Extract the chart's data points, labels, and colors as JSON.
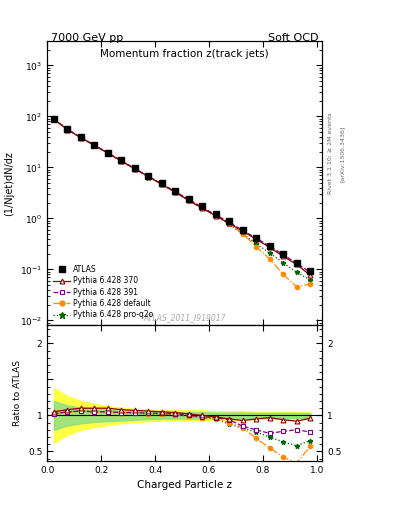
{
  "title_top_left": "7000 GeV pp",
  "title_top_right": "Soft QCD",
  "plot_title": "Momentum fraction z(track jets)",
  "ylabel_main": "(1/Njet)dN/dz",
  "ylabel_ratio": "Ratio to ATLAS",
  "xlabel": "Charged Particle z",
  "watermark": "ATLAS_2011_I919017",
  "rivet_label": "Rivet 3.1.10; ≥ 2M events",
  "arxiv_label": "[arXiv:1306.3436]",
  "ylim_main": [
    0.008,
    3000
  ],
  "ylim_ratio": [
    0.37,
    2.25
  ],
  "xlim": [
    0.0,
    1.02
  ],
  "z_values": [
    0.025,
    0.075,
    0.125,
    0.175,
    0.225,
    0.275,
    0.325,
    0.375,
    0.425,
    0.475,
    0.525,
    0.575,
    0.625,
    0.675,
    0.725,
    0.775,
    0.825,
    0.875,
    0.925,
    0.975
  ],
  "atlas_y": [
    90,
    57,
    39,
    27.5,
    19.5,
    13.8,
    9.7,
    6.9,
    4.9,
    3.5,
    2.45,
    1.72,
    1.22,
    0.87,
    0.6,
    0.42,
    0.29,
    0.2,
    0.135,
    0.092
  ],
  "atlas_yerr": [
    5,
    3,
    2,
    1.5,
    1.0,
    0.7,
    0.5,
    0.35,
    0.25,
    0.18,
    0.12,
    0.09,
    0.07,
    0.05,
    0.04,
    0.03,
    0.02,
    0.015,
    0.012,
    0.009
  ],
  "py370_y": [
    87,
    55,
    38,
    27,
    19,
    13.3,
    9.3,
    6.6,
    4.65,
    3.25,
    2.25,
    1.58,
    1.12,
    0.8,
    0.56,
    0.39,
    0.27,
    0.18,
    0.125,
    0.077
  ],
  "py370_ratio": [
    1.05,
    1.08,
    1.1,
    1.1,
    1.1,
    1.08,
    1.07,
    1.06,
    1.05,
    1.04,
    1.02,
    1.0,
    0.98,
    0.95,
    0.93,
    0.95,
    0.97,
    0.94,
    0.92,
    0.96
  ],
  "py391_y": [
    88,
    56,
    38.5,
    27.2,
    19.2,
    13.5,
    9.5,
    6.7,
    4.75,
    3.35,
    2.35,
    1.65,
    1.17,
    0.84,
    0.58,
    0.41,
    0.285,
    0.195,
    0.132,
    0.088
  ],
  "py391_ratio": [
    1.02,
    1.05,
    1.06,
    1.05,
    1.05,
    1.04,
    1.04,
    1.03,
    1.03,
    1.02,
    1.0,
    0.98,
    0.97,
    0.94,
    0.85,
    0.8,
    0.75,
    0.78,
    0.8,
    0.77
  ],
  "pydef_y": [
    88,
    56,
    38,
    27,
    19,
    13.2,
    9.3,
    6.6,
    4.65,
    3.25,
    2.25,
    1.58,
    1.12,
    0.77,
    0.5,
    0.28,
    0.16,
    0.08,
    0.045,
    0.052
  ],
  "pydef_ratio": [
    1.02,
    1.05,
    1.06,
    1.05,
    1.05,
    1.04,
    1.03,
    1.02,
    1.02,
    1.01,
    0.99,
    0.97,
    0.95,
    0.9,
    0.83,
    0.68,
    0.55,
    0.42,
    0.34,
    0.57
  ],
  "pyq2o_y": [
    88,
    56,
    38,
    27,
    19,
    13.2,
    9.3,
    6.6,
    4.65,
    3.25,
    2.25,
    1.58,
    1.12,
    0.77,
    0.5,
    0.32,
    0.21,
    0.135,
    0.088,
    0.062
  ],
  "pyq2o_ratio": [
    1.02,
    1.05,
    1.06,
    1.05,
    1.05,
    1.04,
    1.03,
    1.02,
    1.02,
    1.01,
    0.99,
    0.97,
    0.95,
    0.88,
    0.82,
    0.77,
    0.7,
    0.63,
    0.58,
    0.65
  ],
  "atlas_color": "#000000",
  "py370_color": "#8b0000",
  "py391_color": "#7f007f",
  "pydef_color": "#ff8c00",
  "pyq2o_color": "#006400",
  "band_yellow": "#ffff44",
  "band_green": "#88dd88",
  "atlas_band_y_lo": [
    0.62,
    0.73,
    0.8,
    0.84,
    0.87,
    0.89,
    0.91,
    0.92,
    0.93,
    0.93,
    0.93,
    0.93,
    0.94,
    0.94,
    0.94,
    0.95,
    0.95,
    0.95,
    0.95,
    0.96
  ],
  "atlas_band_y_hi": [
    1.38,
    1.27,
    1.2,
    1.16,
    1.13,
    1.11,
    1.09,
    1.08,
    1.07,
    1.07,
    1.07,
    1.07,
    1.06,
    1.06,
    1.06,
    1.05,
    1.05,
    1.05,
    1.05,
    1.04
  ],
  "atlas_band_inner_lo": [
    0.8,
    0.86,
    0.89,
    0.91,
    0.92,
    0.93,
    0.94,
    0.95,
    0.955,
    0.955,
    0.955,
    0.955,
    0.96,
    0.96,
    0.96,
    0.965,
    0.965,
    0.965,
    0.965,
    0.97
  ],
  "atlas_band_inner_hi": [
    1.2,
    1.14,
    1.11,
    1.09,
    1.08,
    1.07,
    1.06,
    1.05,
    1.045,
    1.045,
    1.045,
    1.045,
    1.04,
    1.04,
    1.04,
    1.035,
    1.035,
    1.035,
    1.035,
    1.03
  ]
}
